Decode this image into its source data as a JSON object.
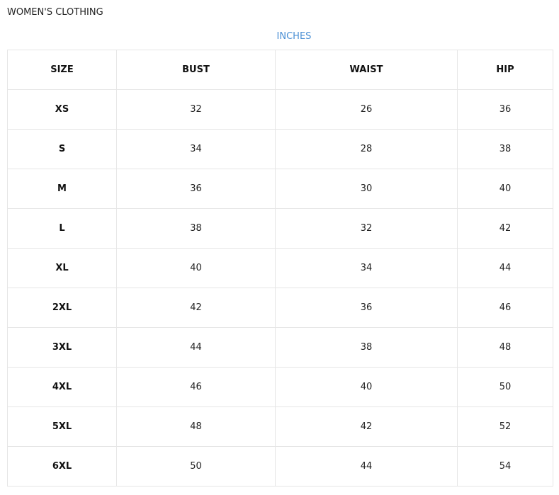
{
  "title": "WOMEN'S CLOTHING",
  "unit": "INCHES",
  "columns": [
    "SIZE",
    "BUST",
    "WAIST",
    "HIP"
  ],
  "rows": [
    [
      "XS",
      "32",
      "26",
      "36"
    ],
    [
      "S",
      "34",
      "28",
      "38"
    ],
    [
      "M",
      "36",
      "30",
      "40"
    ],
    [
      "L",
      "38",
      "32",
      "42"
    ],
    [
      "XL",
      "40",
      "34",
      "44"
    ],
    [
      "2XL",
      "42",
      "36",
      "46"
    ],
    [
      "3XL",
      "44",
      "38",
      "48"
    ],
    [
      "4XL",
      "46",
      "40",
      "50"
    ],
    [
      "5XL",
      "48",
      "42",
      "52"
    ],
    [
      "6XL",
      "50",
      "44",
      "54"
    ]
  ],
  "colors": {
    "unit": "#4a8fd4",
    "border": "#e6e6e6"
  }
}
